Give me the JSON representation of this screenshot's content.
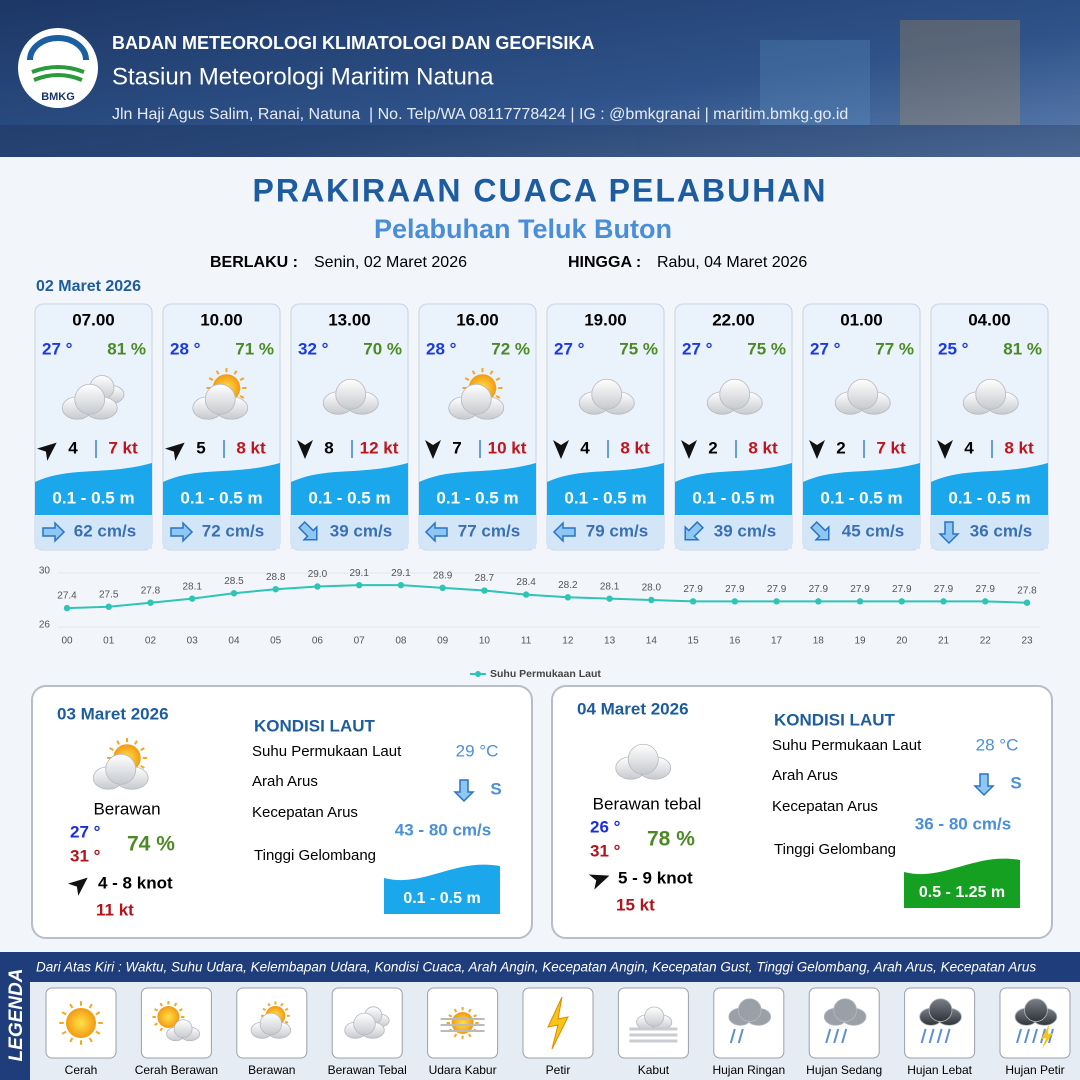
{
  "header": {
    "logo_text": "BMKG",
    "agency": "BADAN METEOROLOGI KLIMATOLOGI DAN GEOFISIKA",
    "station": "Stasiun Meteorologi Maritim Natuna",
    "contact": "Jln Haji Agus Salim, Ranai, Natuna  | No. Telp/WA 08117778424 | IG : @bmkgranai | maritim.bmkg.go.id"
  },
  "title": "PRAKIRAAN CUACA PELABUHAN",
  "subtitle": "Pelabuhan Teluk Buton",
  "validity": {
    "from_label": "BERLAKU :",
    "from": "Senin, 02 Maret 2026",
    "to_label": "HINGGA :",
    "to": "Rabu, 04 Maret 2026"
  },
  "today": {
    "date": "02 Maret 2026",
    "slots": [
      {
        "time": "07.00",
        "temp": "27 °",
        "humidity": "81 %",
        "wind": "4",
        "gust": "7 kt",
        "wave": "0.1 - 0.5 m",
        "current": "62 cm/s"
      },
      {
        "time": "10.00",
        "temp": "28 °",
        "humidity": "71 %",
        "wind": "5",
        "gust": "8 kt",
        "wave": "0.1 - 0.5 m",
        "current": "72 cm/s"
      },
      {
        "time": "13.00",
        "temp": "32 °",
        "humidity": "70 %",
        "wind": "8",
        "gust": "12 kt",
        "wave": "0.1 - 0.5 m",
        "current": "39 cm/s"
      },
      {
        "time": "16.00",
        "temp": "28 °",
        "humidity": "72 %",
        "wind": "7",
        "gust": "10 kt",
        "wave": "0.1 - 0.5 m",
        "current": "77 cm/s"
      },
      {
        "time": "19.00",
        "temp": "27 °",
        "humidity": "75 %",
        "wind": "4",
        "gust": "8 kt",
        "wave": "0.1 - 0.5 m",
        "current": "79 cm/s"
      },
      {
        "time": "22.00",
        "temp": "27 °",
        "humidity": "75 %",
        "wind": "2",
        "gust": "8 kt",
        "wave": "0.1 - 0.5 m",
        "current": "39 cm/s"
      },
      {
        "time": "01.00",
        "temp": "27 °",
        "humidity": "77 %",
        "wind": "2",
        "gust": "7 kt",
        "wave": "0.1 - 0.5 m",
        "current": "45 cm/s"
      },
      {
        "time": "04.00",
        "temp": "25 °",
        "humidity": "81 %",
        "wind": "4",
        "gust": "8 kt",
        "wave": "0.1 - 0.5 m",
        "current": "36 cm/s"
      }
    ]
  },
  "chart_data": {
    "type": "line",
    "categories": [
      "00",
      "01",
      "02",
      "03",
      "04",
      "05",
      "06",
      "07",
      "08",
      "09",
      "10",
      "11",
      "12",
      "13",
      "14",
      "15",
      "16",
      "17",
      "18",
      "19",
      "20",
      "21",
      "22",
      "23"
    ],
    "series": [
      {
        "name": "Suhu Permukaan Laut",
        "color": "#2ec4b6",
        "values": [
          27.4,
          27.5,
          27.8,
          28.1,
          28.5,
          28.8,
          29.0,
          29.1,
          29.1,
          28.9,
          28.7,
          28.4,
          28.2,
          28.1,
          28.0,
          27.9,
          27.9,
          27.9,
          27.9,
          27.9,
          27.9,
          27.9,
          27.9,
          27.8
        ],
        "value_labels": [
          "27.4",
          "27.5",
          "27.8",
          "28.1",
          "28.5",
          "28.8",
          "29.0",
          "29.1",
          "29.1",
          "28.9",
          "28.7",
          "28.4",
          "28.2",
          "28.1",
          "28.0",
          "27.9",
          "27.9",
          "27.9",
          "27.9",
          "27.9",
          "27.9",
          "27.9",
          "27.9",
          "27.8"
        ]
      }
    ],
    "ylim": [
      26,
      30
    ],
    "yticks": [
      26,
      30
    ],
    "grid": true,
    "legend": "bottom"
  },
  "outlook": [
    {
      "date": "03 Maret 2026",
      "condition": "Berawan",
      "temp_min": "27 °",
      "temp_max": "31 °",
      "humidity": "74 %",
      "wind": "4 - 8 knot",
      "gust": "11 kt",
      "sea_title": "KONDISI LAUT",
      "sst_label": "Suhu Permukaan Laut",
      "sst": "29 °C",
      "current_dir_label": "Arah Arus",
      "current_dir": "S",
      "current_speed_label": "Kecepatan Arus",
      "current_speed": "43 - 80 cm/s",
      "wave_label": "Tinggi Gelombang",
      "wave": "0.1 - 0.5 m"
    },
    {
      "date": "04 Maret 2026",
      "condition": "Berawan tebal",
      "temp_min": "26 °",
      "temp_max": "31 °",
      "humidity": "78 %",
      "wind": "5 - 9 knot",
      "gust": "15 kt",
      "sea_title": "KONDISI LAUT",
      "sst_label": "Suhu Permukaan Laut",
      "sst": "28 °C",
      "current_dir_label": "Arah Arus",
      "current_dir": "S",
      "current_speed_label": "Kecepatan Arus",
      "current_speed": "36 - 80 cm/s",
      "wave_label": "Tinggi Gelombang",
      "wave": "0.5 - 1.25 m"
    }
  ],
  "legend": {
    "title": "LEGENDA",
    "description": "Dari Atas Kiri : Waktu, Suhu Udara, Kelembapan Udara, Kondisi Cuaca, Arah Angin, Kecepatan Angin, Kecepatan Gust, Tinggi Gelombang, Arah Arus, Kecepatan Arus",
    "items": [
      "Cerah",
      "Cerah Berawan",
      "Berawan",
      "Berawan Tebal",
      "Udara Kabur",
      "Petir",
      "Kabut",
      "Hujan Ringan",
      "Hujan Sedang",
      "Hujan Lebat",
      "Hujan Petir"
    ]
  }
}
